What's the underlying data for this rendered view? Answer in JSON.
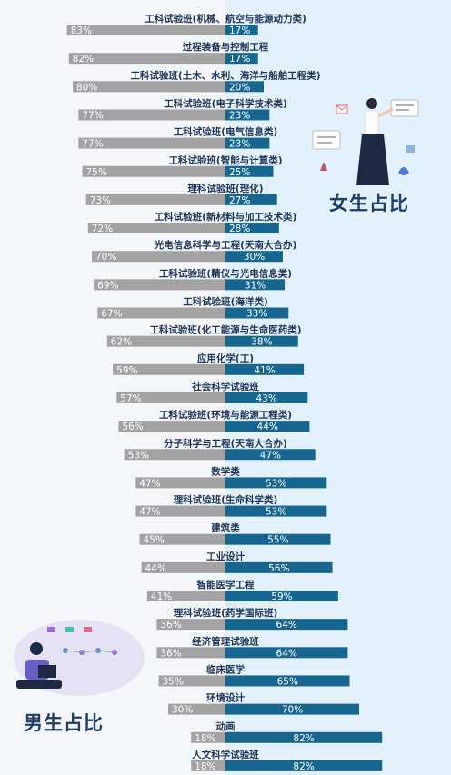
{
  "chart_data": {
    "type": "bar",
    "orientation": "horizontal-diverging",
    "categories": [
      "工科试验班(机械、航空与能源动力类)",
      "过程装备与控制工程",
      "工科试验班(土木、水利、海洋与船舶工程类)",
      "工科试验班(电子科学技术类)",
      "工科试验班(电气信息类)",
      "工科试验班(智能与计算类)",
      "理科试验班(理化)",
      "工科试验班(新材料与加工技术类)",
      "光电信息科学与工程(天南大合办)",
      "工科试验班(精仪与光电信息类)",
      "工科试验班(海洋类)",
      "工科试验班(化工能源与生命医药类)",
      "应用化学(工)",
      "社会科学试验班",
      "工科试验班(环境与能源工程类)",
      "分子科学与工程(天南大合办)",
      "数学类",
      "理科试验班(生命科学类)",
      "建筑类",
      "工业设计",
      "智能医学工程",
      "理科试验班(药学国际班)",
      "经济管理试验班",
      "临床医学",
      "环境设计",
      "动画",
      "人文科学试验班"
    ],
    "series": [
      {
        "name": "男生占比",
        "values": [
          83,
          82,
          80,
          77,
          77,
          75,
          73,
          72,
          70,
          69,
          67,
          62,
          59,
          57,
          56,
          53,
          47,
          47,
          45,
          44,
          41,
          36,
          36,
          35,
          30,
          18,
          18
        ]
      },
      {
        "name": "女生占比",
        "values": [
          17,
          17,
          20,
          23,
          23,
          25,
          27,
          28,
          30,
          31,
          33,
          38,
          41,
          43,
          44,
          47,
          53,
          53,
          55,
          56,
          59,
          64,
          64,
          65,
          70,
          82,
          82
        ]
      }
    ],
    "value_suffix": "%",
    "xlim": [
      0,
      100
    ],
    "colors": {
      "male": "#a3a3a3",
      "female": "#176690"
    },
    "legend": [
      "女生占比",
      "男生占比"
    ]
  },
  "legend": {
    "female": "女生占比",
    "male": "男生占比"
  }
}
